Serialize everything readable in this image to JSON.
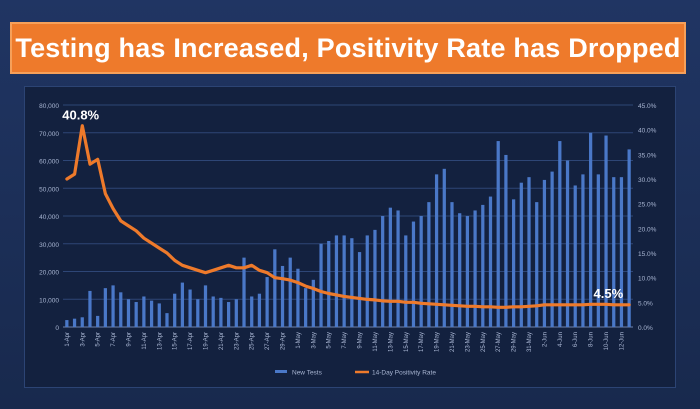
{
  "title": "Testing has Increased, Positivity Rate has Dropped",
  "chart_data": {
    "type": "bar",
    "categories": [
      "1-Apr",
      "2-Apr",
      "3-Apr",
      "4-Apr",
      "5-Apr",
      "6-Apr",
      "7-Apr",
      "8-Apr",
      "9-Apr",
      "10-Apr",
      "11-Apr",
      "12-Apr",
      "13-Apr",
      "14-Apr",
      "15-Apr",
      "16-Apr",
      "17-Apr",
      "18-Apr",
      "19-Apr",
      "20-Apr",
      "21-Apr",
      "22-Apr",
      "23-Apr",
      "24-Apr",
      "25-Apr",
      "26-Apr",
      "27-Apr",
      "28-Apr",
      "29-Apr",
      "30-Apr",
      "1-May",
      "2-May",
      "3-May",
      "4-May",
      "5-May",
      "6-May",
      "7-May",
      "8-May",
      "9-May",
      "10-May",
      "11-May",
      "12-May",
      "13-May",
      "14-May",
      "15-May",
      "16-May",
      "17-May",
      "18-May",
      "19-May",
      "20-May",
      "21-May",
      "22-May",
      "23-May",
      "24-May",
      "25-May",
      "26-May",
      "27-May",
      "28-May",
      "29-May",
      "30-May",
      "31-May",
      "1-Jun",
      "2-Jun",
      "3-Jun",
      "4-Jun",
      "5-Jun",
      "6-Jun",
      "7-Jun",
      "8-Jun",
      "9-Jun",
      "10-Jun",
      "11-Jun",
      "12-Jun",
      "13-Jun"
    ],
    "tick_labels": [
      "1-Apr",
      "3-Apr",
      "5-Apr",
      "7-Apr",
      "9-Apr",
      "11-Apr",
      "13-Apr",
      "15-Apr",
      "17-Apr",
      "19-Apr",
      "21-Apr",
      "23-Apr",
      "25-Apr",
      "27-Apr",
      "29-Apr",
      "1-May",
      "3-May",
      "5-May",
      "7-May",
      "9-May",
      "11-May",
      "13-May",
      "15-May",
      "17-May",
      "19-May",
      "21-May",
      "23-May",
      "25-May",
      "27-May",
      "29-May",
      "31-May",
      "2-Jun",
      "4-Jun",
      "6-Jun",
      "8-Jun",
      "10-Jun",
      "12-Jun"
    ],
    "series": [
      {
        "name": "New Tests",
        "axis": "left",
        "color": "#4a78c8",
        "values": [
          2500,
          3000,
          3500,
          13000,
          4000,
          14000,
          15000,
          12500,
          10000,
          9000,
          11000,
          9500,
          8500,
          5000,
          12000,
          16000,
          13500,
          10000,
          15000,
          11000,
          10500,
          9000,
          10000,
          25000,
          11000,
          12000,
          18000,
          28000,
          22000,
          25000,
          21000,
          14000,
          17000,
          30000,
          31000,
          33000,
          33000,
          32000,
          27000,
          33000,
          35000,
          40000,
          43000,
          42000,
          33000,
          38000,
          40000,
          45000,
          55000,
          57000,
          45000,
          41000,
          40000,
          42000,
          44000,
          47000,
          67000,
          62000,
          46000,
          52000,
          54000,
          45000,
          53000,
          56000,
          67000,
          60000,
          51000,
          55000,
          70000,
          55000,
          69000,
          54000,
          54000,
          64000
        ]
      },
      {
        "name": "14-Day Positivity Rate",
        "axis": "right",
        "color": "#ee7a2b",
        "values": [
          30.0,
          31.0,
          40.8,
          33.0,
          34.0,
          27.0,
          24.0,
          21.5,
          20.5,
          19.5,
          18.0,
          17.0,
          16.0,
          15.0,
          13.5,
          12.5,
          12.0,
          11.5,
          11.0,
          11.5,
          12.0,
          12.5,
          12.0,
          12.0,
          12.5,
          11.5,
          11.0,
          10.0,
          9.8,
          9.5,
          9.0,
          8.3,
          7.8,
          7.2,
          6.8,
          6.5,
          6.2,
          6.0,
          5.8,
          5.6,
          5.5,
          5.3,
          5.2,
          5.2,
          5.0,
          5.0,
          4.8,
          4.7,
          4.6,
          4.5,
          4.4,
          4.3,
          4.2,
          4.2,
          4.1,
          4.1,
          4.0,
          4.0,
          4.1,
          4.1,
          4.2,
          4.3,
          4.5,
          4.5,
          4.5,
          4.5,
          4.5,
          4.5,
          4.6,
          4.6,
          4.6,
          4.5,
          4.5,
          4.5
        ]
      }
    ],
    "y_left": {
      "min": 0,
      "max": 80000,
      "ticks": [
        0,
        10000,
        20000,
        30000,
        40000,
        50000,
        60000,
        70000,
        80000
      ],
      "tick_labels": [
        "0",
        "10,000",
        "20,000",
        "30,000",
        "40,000",
        "50,000",
        "60,000",
        "70,000",
        "80,000"
      ]
    },
    "y_right": {
      "min": 0,
      "max": 45,
      "ticks": [
        0,
        5,
        10,
        15,
        20,
        25,
        30,
        35,
        40,
        45
      ],
      "tick_labels": [
        "0.0%",
        "5.0%",
        "10.0%",
        "15.0%",
        "20.0%",
        "25.0%",
        "30.0%",
        "35.0%",
        "40.0%",
        "45.0%"
      ]
    },
    "annotations": [
      {
        "text": "40.8%",
        "index": 2,
        "value": 40.8
      },
      {
        "text": "4.5%",
        "index": 73,
        "value": 4.5
      }
    ],
    "grid": true,
    "legend_position": "bottom"
  }
}
